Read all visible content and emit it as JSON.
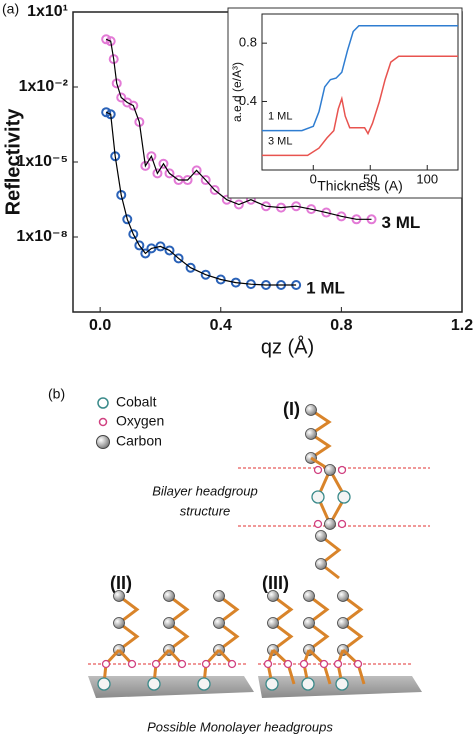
{
  "panel_a_label": "(a)",
  "chart_data": [
    {
      "type": "scatter",
      "x_label": "qz (Å)",
      "y_label": "Reflectivity",
      "yscale": "log",
      "xlim": [
        -0.09,
        1.2
      ],
      "xticks": [
        {
          "value": 0,
          "label": "0.0"
        },
        0.4,
        0.8,
        1.2
      ],
      "ylim": [
        1e-11,
        10
      ],
      "yticks": [
        {
          "value": 10,
          "label": "1x10¹"
        },
        {
          "value": 0.01,
          "label": "1x10⁻²"
        },
        {
          "value": 1e-05,
          "label": "1x10⁻⁵"
        },
        {
          "value": 1e-08,
          "label": "1x10⁻⁸"
        }
      ],
      "fit_color": "#000000",
      "series": [
        {
          "name": "3 ML",
          "color": "#e37ad6",
          "x": [
            0.02,
            0.035,
            0.045,
            0.055,
            0.07,
            0.09,
            0.11,
            0.13,
            0.15,
            0.17,
            0.19,
            0.21,
            0.23,
            0.26,
            0.29,
            0.32,
            0.35,
            0.38,
            0.42,
            0.46,
            0.5,
            0.55,
            0.6,
            0.65,
            0.7,
            0.75,
            0.8,
            0.85,
            0.9
          ],
          "values": [
            0.81,
            0.68,
            0.13,
            0.014,
            0.0038,
            0.0024,
            0.0018,
            0.0004,
            7e-06,
            1.7e-05,
            3.5e-06,
            8.5e-06,
            3.5e-06,
            1.9e-06,
            1.9e-06,
            4.6e-06,
            1.9e-06,
            7.6e-07,
            3.1e-07,
            2e-07,
            3.1e-07,
            1.7e-07,
            1.5e-07,
            1.7e-07,
            1.3e-07,
            9.5e-08,
            6.7e-08,
            5.1e-08,
            5.1e-08
          ]
        },
        {
          "name": "1 ML",
          "color": "#2a62b8",
          "x": [
            0.02,
            0.035,
            0.05,
            0.07,
            0.09,
            0.11,
            0.13,
            0.15,
            0.17,
            0.2,
            0.23,
            0.26,
            0.3,
            0.35,
            0.4,
            0.45,
            0.5,
            0.55,
            0.6,
            0.65
          ],
          "values": [
            0.00098,
            0.00081,
            1.7e-05,
            4.8e-07,
            5.1e-08,
            1.3e-08,
            4.6e-09,
            2.2e-09,
            3.5e-09,
            4.2e-09,
            2.9e-09,
            1.4e-09,
            5.9e-10,
            3.1e-10,
            2e-10,
            1.5e-10,
            1.3e-10,
            1.2e-10,
            1.2e-10,
            1.2e-10
          ]
        }
      ]
    },
    {
      "type": "line",
      "x_label": "Thickness (A)",
      "y_label": "a.e.d (e/A³)",
      "xlim": [
        -45,
        127
      ],
      "xticks": [
        0,
        50,
        100
      ],
      "ylim": [
        -0.07,
        1.0
      ],
      "yticks": [
        0.4,
        0.8
      ],
      "series": [
        {
          "name": "1 ML",
          "color": "#2f7dd1",
          "x": [
            -45,
            -10,
            0,
            5,
            10,
            15,
            20,
            25,
            30,
            35,
            40,
            50,
            127
          ],
          "values": [
            0.2,
            0.2,
            0.23,
            0.33,
            0.5,
            0.55,
            0.56,
            0.6,
            0.75,
            0.88,
            0.92,
            0.92,
            0.92
          ]
        },
        {
          "name": "3 ML",
          "color": "#e8534f",
          "x": [
            -45,
            -5,
            5,
            12,
            18,
            22,
            25,
            28,
            32,
            45,
            48,
            52,
            58,
            63,
            68,
            75,
            127
          ],
          "values": [
            0.03,
            0.03,
            0.08,
            0.15,
            0.2,
            0.35,
            0.42,
            0.3,
            0.22,
            0.22,
            0.18,
            0.25,
            0.4,
            0.55,
            0.67,
            0.71,
            0.71
          ]
        }
      ]
    }
  ],
  "panel_b": {
    "label": "(b)",
    "legend": [
      "Cobalt",
      "Oxygen",
      "Carbon"
    ],
    "structures": [
      "(I)",
      "(II)",
      "(III)"
    ],
    "bilayer_caption": [
      "Bilayer headgroup",
      "structure"
    ],
    "monolayer_caption": "Possible Monolayer headgroups"
  }
}
